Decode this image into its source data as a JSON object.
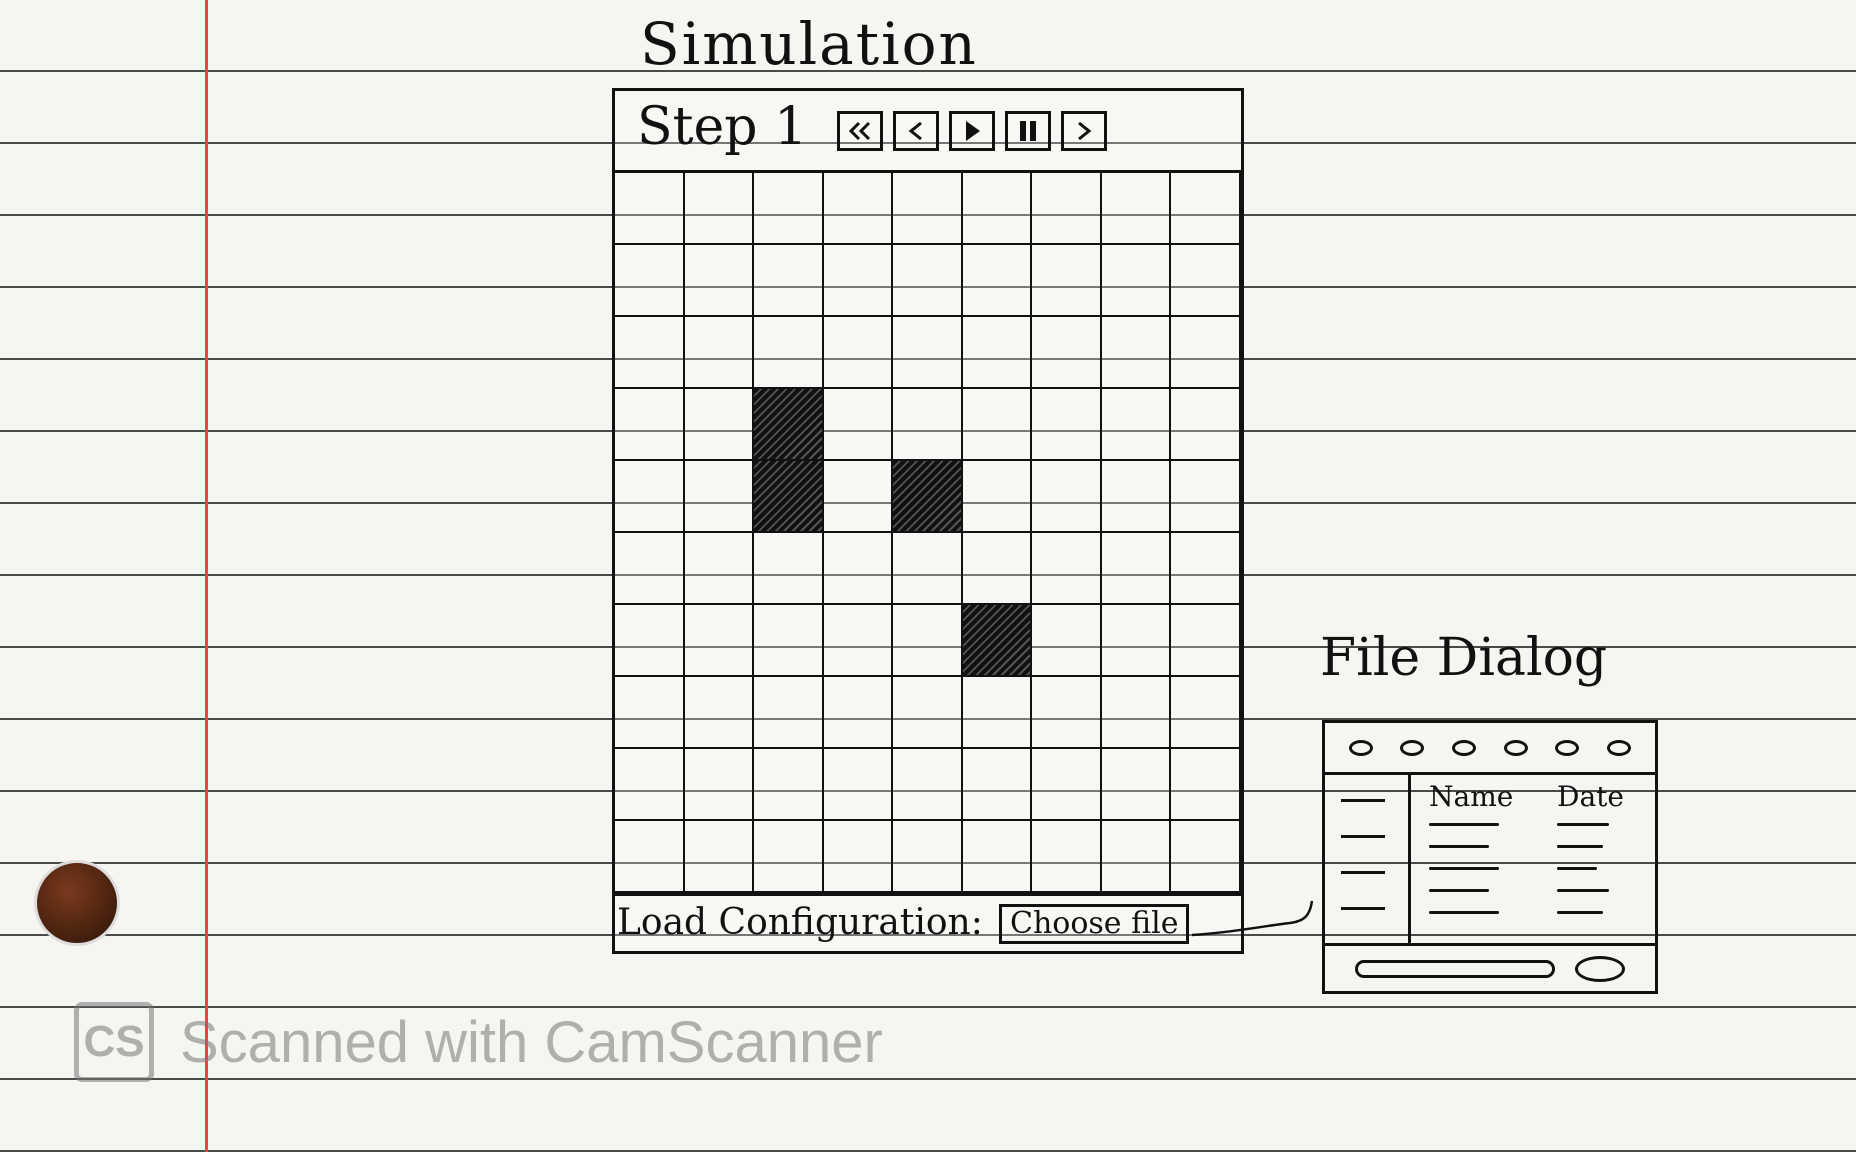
{
  "simulation": {
    "title": "Simulation",
    "step_label": "Step 1",
    "controls": [
      {
        "name": "rewind-button",
        "icon": "double-chevron-left-icon"
      },
      {
        "name": "step-back-button",
        "icon": "chevron-left-icon"
      },
      {
        "name": "play-button",
        "icon": "play-icon"
      },
      {
        "name": "pause-button",
        "icon": "pause-icon"
      },
      {
        "name": "step-forward-button",
        "icon": "chevron-right-icon"
      }
    ],
    "grid": {
      "rows": 10,
      "cols": 9,
      "filled_cells": [
        [
          3,
          2
        ],
        [
          4,
          2
        ],
        [
          4,
          4
        ],
        [
          6,
          5
        ]
      ]
    },
    "footer": {
      "load_label": "Load Configuration:",
      "choose_button": "Choose file"
    }
  },
  "file_dialog": {
    "title": "File Dialog",
    "toolbar_buttons": 6,
    "sidebar_items": 4,
    "columns": [
      "Name",
      "Date"
    ],
    "rows": 5
  },
  "watermark": {
    "logo": "CS",
    "text": "Scanned with CamScanner"
  },
  "colors": {
    "ink": "#111111",
    "paper": "#f7f5f1",
    "margin_line": "#e4463f",
    "ruled_line": "#4a4a4a",
    "watermark": "#777777"
  }
}
